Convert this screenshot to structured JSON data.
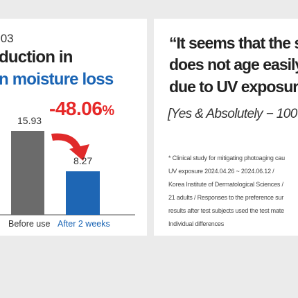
{
  "left_panel": {
    "headline_number": ".03",
    "headline_line1": "duction in",
    "headline_line2": "n moisture loss",
    "reduction_value": "-48.06",
    "reduction_unit": "%"
  },
  "right_panel": {
    "quote_lines": [
      "“It seems that the s",
      "does not age easily",
      "due to UV exposure"
    ],
    "response_line": "[Yes & Absolutely  − 100",
    "footnote_lines": [
      "* Clinical study for mitigating photoaging cau",
      "UV exposure 2024.04.26 ~ 2024.06.12 /",
      "Korea Institute of Dermatological Sciences /",
      "21 adults / Responses to the preference sur",
      "results after test subjects used the test mate",
      "Individual differences"
    ]
  },
  "colors": {
    "before_bar": "#6b6b6b",
    "after_bar": "#1e66b4",
    "arrow": "#e02a2a",
    "accent_blue": "#1a64b4",
    "accent_red": "#e62828",
    "axis": "#555555"
  },
  "chart_data": {
    "type": "bar",
    "categories": [
      "Before use",
      "After 2 weeks"
    ],
    "values": [
      15.93,
      8.27
    ],
    "value_labels": [
      "15.93",
      "8.27"
    ],
    "change_label": "-48.06%",
    "ylim": [
      0,
      17
    ]
  }
}
